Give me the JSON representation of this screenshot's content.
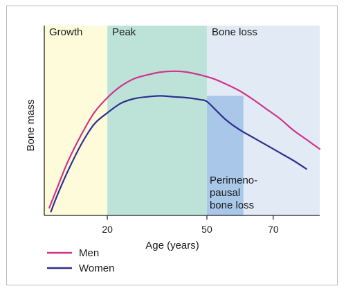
{
  "chart_data": {
    "type": "line",
    "title": "",
    "xlabel": "Age (years)",
    "ylabel": "Bone mass",
    "x_ticks": [
      20,
      50,
      70
    ],
    "xlim": [
      1,
      84
    ],
    "ylim": [
      0,
      100
    ],
    "regions": [
      {
        "label": "Growth",
        "x0": 1,
        "x1": 20,
        "color": "#fdfbd9"
      },
      {
        "label": "Peak",
        "x0": 20,
        "x1": 50,
        "color": "#bde3d9"
      },
      {
        "label": "Bone loss",
        "x0": 50,
        "x1": 84,
        "color": "#e1eaf5"
      }
    ],
    "highlight": {
      "label_lines": [
        "Perimeno-",
        "pausal",
        "bone loss"
      ],
      "x0": 50,
      "x1": 61,
      "y_top": 63,
      "color": "#a9c7e8"
    },
    "series": [
      {
        "name": "Men",
        "color": "#d0338a",
        "x": [
          2.5,
          5,
          8,
          12,
          16,
          20,
          24,
          28,
          32,
          36,
          40,
          44,
          48,
          52,
          56,
          60,
          64,
          68,
          72,
          76,
          80,
          84
        ],
        "y": [
          4,
          15,
          28,
          42,
          54,
          62,
          68,
          72,
          74,
          75.5,
          76,
          75.5,
          74,
          72,
          69,
          65.5,
          61,
          56,
          51,
          45,
          40,
          35
        ]
      },
      {
        "name": "Women",
        "color": "#2e2f8e",
        "x": [
          3,
          5,
          8,
          12,
          16,
          20,
          24,
          28,
          32,
          36,
          40,
          44,
          48,
          50,
          53,
          56,
          60,
          64,
          68,
          72,
          76,
          80
        ],
        "y": [
          2,
          11,
          23,
          37,
          48,
          54,
          59,
          61.5,
          62.5,
          63,
          62.5,
          62,
          61,
          60,
          55,
          50,
          45,
          41,
          37,
          33,
          29,
          24.5
        ]
      }
    ],
    "legend": {
      "placement": "bottom-left",
      "entries": [
        "Men",
        "Women"
      ]
    },
    "grid": false
  }
}
